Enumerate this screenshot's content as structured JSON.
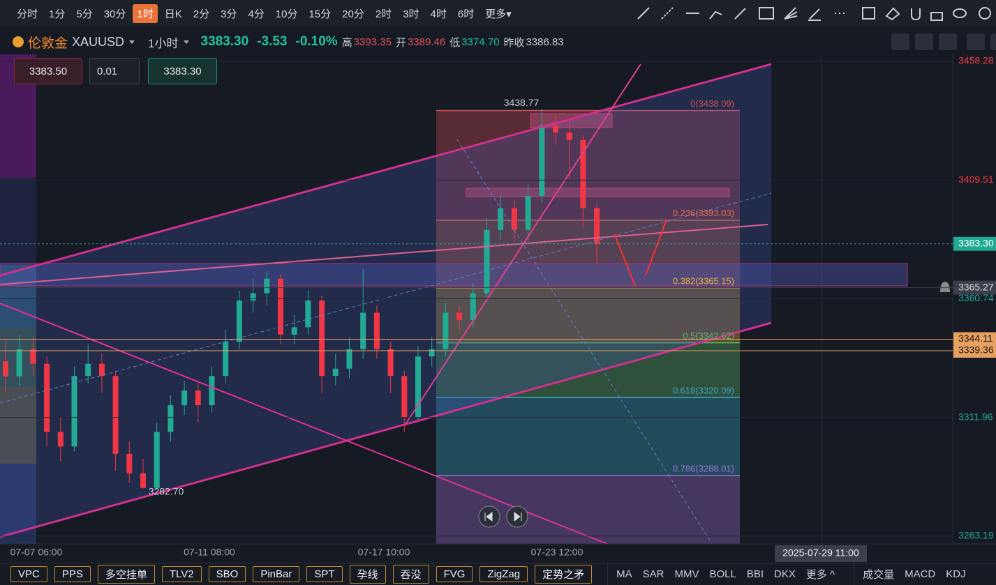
{
  "toolbar": {
    "timeframes": [
      "分时",
      "1分",
      "5分",
      "30分",
      "1时",
      "日K",
      "2分",
      "3分",
      "4分",
      "10分",
      "15分",
      "20分",
      "2时",
      "3时",
      "4时",
      "6时",
      "更多▾"
    ],
    "active_index": 4
  },
  "symbol": {
    "name": "伦敦金",
    "code": "XAUUSD",
    "interval": "1小时",
    "price": "3383.30",
    "change": "-3.53",
    "change_pct": "-0.10%",
    "high_label": "高",
    "high": "3393.35",
    "open_label": "开",
    "open": "3389.46",
    "low_label": "低",
    "low": "3374.70",
    "prev_label": "昨收",
    "prev": "3386.83"
  },
  "order_panel": {
    "sell": "3383.50",
    "lots": "0.01",
    "buy": "3383.30"
  },
  "chart": {
    "ylim": [
      3260,
      3461.15
    ],
    "price_ticks": [
      3458.28,
      3409.51,
      3360.74,
      3311.96,
      3263.19
    ],
    "up_color": "#22ab94",
    "down_color": "#f23645",
    "candles": [
      [
        3335,
        3344,
        3322,
        3328.8
      ],
      [
        3328.8,
        3346,
        3325,
        3340
      ],
      [
        3340,
        3345,
        3329,
        3334
      ],
      [
        3334,
        3337,
        3300,
        3306
      ],
      [
        3306,
        3312,
        3294,
        3300
      ],
      [
        3300,
        3333,
        3298,
        3329
      ],
      [
        3329,
        3342,
        3326,
        3334
      ],
      [
        3334,
        3338,
        3322,
        3329
      ],
      [
        3329,
        3331,
        3290,
        3297
      ],
      [
        3297,
        3302,
        3285,
        3289
      ],
      [
        3289,
        3295,
        3282.7,
        3283
      ],
      [
        3283,
        3310,
        3283,
        3306
      ],
      [
        3306,
        3321,
        3302,
        3317
      ],
      [
        3317,
        3327,
        3313,
        3323
      ],
      [
        3323,
        3326,
        3310,
        3317
      ],
      [
        3317,
        3333,
        3314,
        3329
      ],
      [
        3329,
        3348,
        3326,
        3343
      ],
      [
        3343,
        3364,
        3340,
        3360
      ],
      [
        3360,
        3369,
        3355,
        3363
      ],
      [
        3363,
        3372,
        3358,
        3369
      ],
      [
        3369,
        3371,
        3342,
        3346
      ],
      [
        3346,
        3354,
        3342,
        3349
      ],
      [
        3349,
        3364,
        3346,
        3360
      ],
      [
        3360,
        3362,
        3322,
        3329
      ],
      [
        3329,
        3338,
        3325,
        3332
      ],
      [
        3332,
        3345,
        3328,
        3340
      ],
      [
        3340,
        3373,
        3336,
        3355
      ],
      [
        3355,
        3358,
        3336,
        3340
      ],
      [
        3340,
        3343,
        3322,
        3329
      ],
      [
        3329,
        3331,
        3306,
        3312
      ],
      [
        3312,
        3341,
        3310,
        3337
      ],
      [
        3337,
        3345,
        3333,
        3340
      ],
      [
        3340,
        3359,
        3337,
        3355
      ],
      [
        3355,
        3358,
        3348,
        3352
      ],
      [
        3352,
        3367,
        3349,
        3363
      ],
      [
        3363,
        3394,
        3360,
        3389
      ],
      [
        3389,
        3403,
        3385,
        3398
      ],
      [
        3398,
        3401,
        3384,
        3389
      ],
      [
        3389,
        3408,
        3385,
        3403
      ],
      [
        3403,
        3438.77,
        3400,
        3432
      ],
      [
        3432,
        3436,
        3424,
        3429
      ],
      [
        3429,
        3434,
        3410,
        3426
      ],
      [
        3426,
        3428,
        3390,
        3398
      ],
      [
        3398,
        3400,
        3374.7,
        3383.3
      ]
    ],
    "time_labels": [
      "07-07 06:00",
      "07-11 08:00",
      "07-17 10:00",
      "07-23 12:00"
    ],
    "fib_levels": [
      {
        "label": "0(3438.09)",
        "price": 3438.09,
        "color": "#d2505a"
      },
      {
        "label": "0.236(3393.03)",
        "price": 3393.03,
        "color": "#e0704a"
      },
      {
        "label": "0.382(3365.15)",
        "price": 3365.15,
        "color": "#e8b040"
      },
      {
        "label": "0.5(3342.62)",
        "price": 3342.62,
        "color": "#5fb86a"
      },
      {
        "label": "0.618(3320.09)",
        "price": 3320.09,
        "color": "#3aa8c8"
      },
      {
        "label": "0.786(3288.01)",
        "price": 3288.01,
        "color": "#a070d8"
      }
    ],
    "price_tags": [
      {
        "value": 3383.3,
        "label": "3383.30",
        "color": "#22ab94"
      },
      {
        "value": 3365.27,
        "color": "#3a3f4a"
      },
      {
        "value": 3344.11,
        "color": "#e8a060"
      },
      {
        "value": 3339.36,
        "color": "#e8a060"
      }
    ],
    "annotations": [
      {
        "value": 3438.77
      },
      {
        "value": 3282.7,
        "label": "3282.70"
      }
    ],
    "crosshair_time": "2025-07-29 11:00"
  },
  "indicators": {
    "tools": [
      "VPC",
      "PPS",
      "多空挂单",
      "TLV2",
      "SBO",
      "PinBar",
      "SPT",
      "孕线",
      "吞没",
      "FVG",
      "ZigZag",
      "定势之矛"
    ],
    "overlays": [
      "MA",
      "SAR",
      "MMV",
      "BOLL",
      "BBI",
      "DKX",
      "更多 ^"
    ],
    "panels": [
      "成交量",
      "MACD",
      "KDJ"
    ]
  }
}
